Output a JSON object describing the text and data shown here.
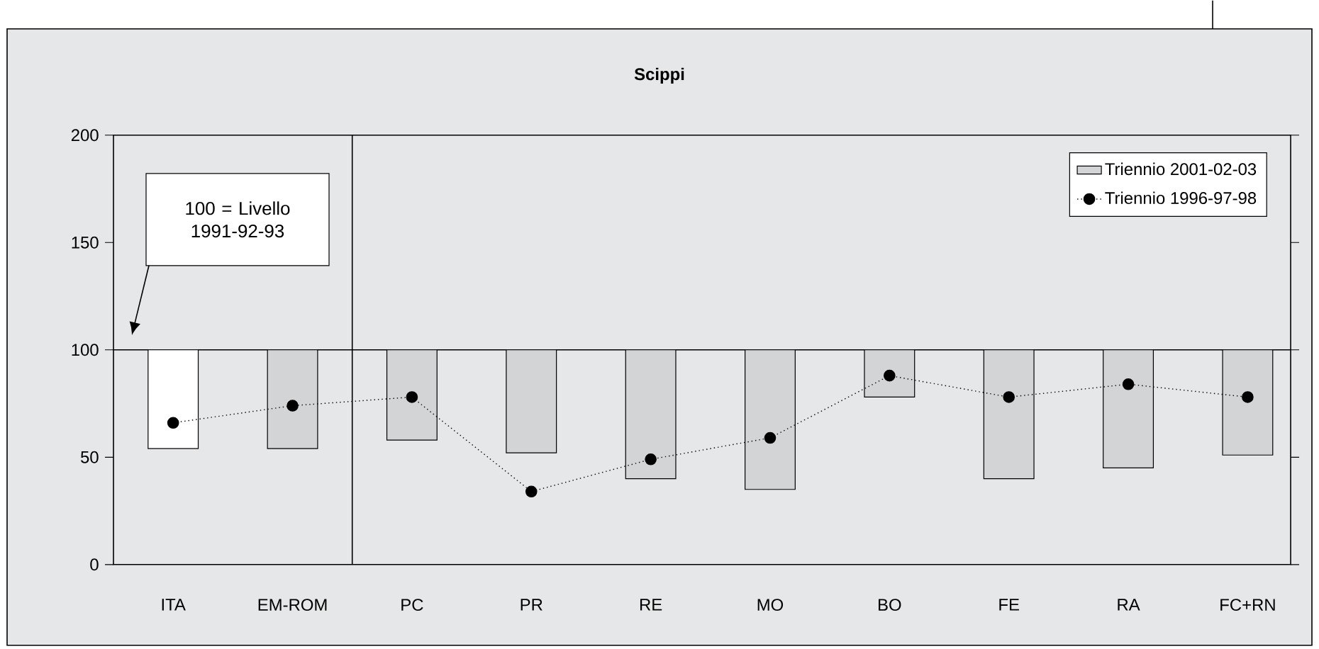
{
  "chart_data": {
    "type": "bar",
    "title": "Scippi",
    "categories": [
      "ITA",
      "EM-ROM",
      "PC",
      "PR",
      "RE",
      "MO",
      "BO",
      "FE",
      "RA",
      "FC+RN"
    ],
    "series": [
      {
        "name": "Triennio 2001-02-03",
        "color": "#d3d4d5",
        "colors": [
          "#ffffff",
          "#d3d4d5",
          "#d3d4d5",
          "#d3d4d5",
          "#d3d4d5",
          "#d3d4d5",
          "#d3d4d5",
          "#d3d4d5",
          "#d3d4d5",
          "#d3d4d5"
        ],
        "base": [
          100,
          100,
          100,
          100,
          100,
          100,
          100,
          100,
          100,
          100
        ],
        "values": [
          -46,
          -46,
          -42,
          -48,
          -60,
          -65,
          -22,
          -60,
          -55,
          -49
        ]
      },
      {
        "name": "Triennio 1996-97-98",
        "type": "line",
        "color": "#000000",
        "marker": "circle",
        "line_style": "dotted",
        "values": [
          66,
          74,
          78,
          34,
          49,
          59,
          88,
          78,
          84,
          78
        ]
      }
    ],
    "ylim": [
      0,
      200
    ],
    "yticks": [
      0,
      50,
      100,
      150,
      200
    ],
    "legend": "top right",
    "ref_lines": [
      {
        "axis": "y",
        "value": 100
      }
    ],
    "annotations": [
      "100 = Livello 1991-92-93"
    ]
  }
}
